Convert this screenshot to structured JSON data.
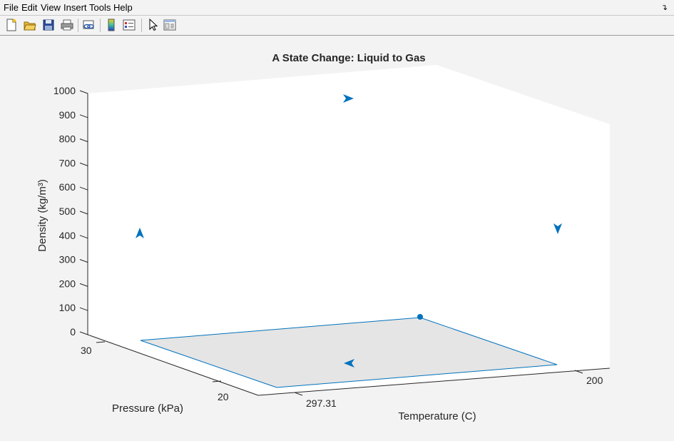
{
  "menu": {
    "items": [
      "File",
      "Edit",
      "View",
      "Insert",
      "Tools",
      "Help"
    ]
  },
  "toolbar": {
    "buttons": [
      {
        "icon": "new-figure-icon"
      },
      {
        "icon": "open-file-icon"
      },
      {
        "icon": "save-icon"
      },
      {
        "icon": "print-icon"
      },
      {
        "icon": "link-plot-icon"
      },
      {
        "icon": "colorbar-icon"
      },
      {
        "icon": "legend-icon"
      },
      {
        "icon": "pointer-icon"
      },
      {
        "icon": "property-editor-icon"
      }
    ]
  },
  "colors": {
    "series": "#0072bd",
    "surface": "#e5e5e5",
    "axis_bg": "#ffffff",
    "text": "#262626"
  },
  "chart_data": {
    "type": "line",
    "title": "A State Change: Liquid to Gas",
    "xlabel": "Temperature (C)",
    "ylabel": "Pressure (kPa)",
    "zlabel": "Density  (kg/m³)",
    "z_ticks": [
      "0",
      "100",
      "200",
      "300",
      "400",
      "500",
      "600",
      "700",
      "800",
      "900",
      "1000"
    ],
    "x_ticks": [
      "297.31",
      "200"
    ],
    "y_ticks": [
      "20",
      "30"
    ],
    "zlim": [
      0,
      1000
    ],
    "grid": false,
    "view": "3-D",
    "series": [
      {
        "marker": "arrowheads",
        "points": [
          {
            "label": "top",
            "direction": "right",
            "z": 960
          },
          {
            "label": "left",
            "direction": "up",
            "z": 420
          },
          {
            "label": "right",
            "direction": "down",
            "z": 440
          },
          {
            "label": "bottom",
            "direction": "left",
            "z": 0
          }
        ]
      },
      {
        "type": "surface",
        "corners": [
          {
            "x": 297.31,
            "y": 30,
            "z": 0
          },
          {
            "x": 200,
            "y": 30,
            "z": 0
          },
          {
            "x": 200,
            "y": 20,
            "z": 0
          },
          {
            "x": 297.31,
            "y": 20,
            "z": 0
          }
        ]
      },
      {
        "marker": "dot",
        "points": [
          {
            "label": "back-corner",
            "z": 0
          }
        ]
      }
    ]
  }
}
